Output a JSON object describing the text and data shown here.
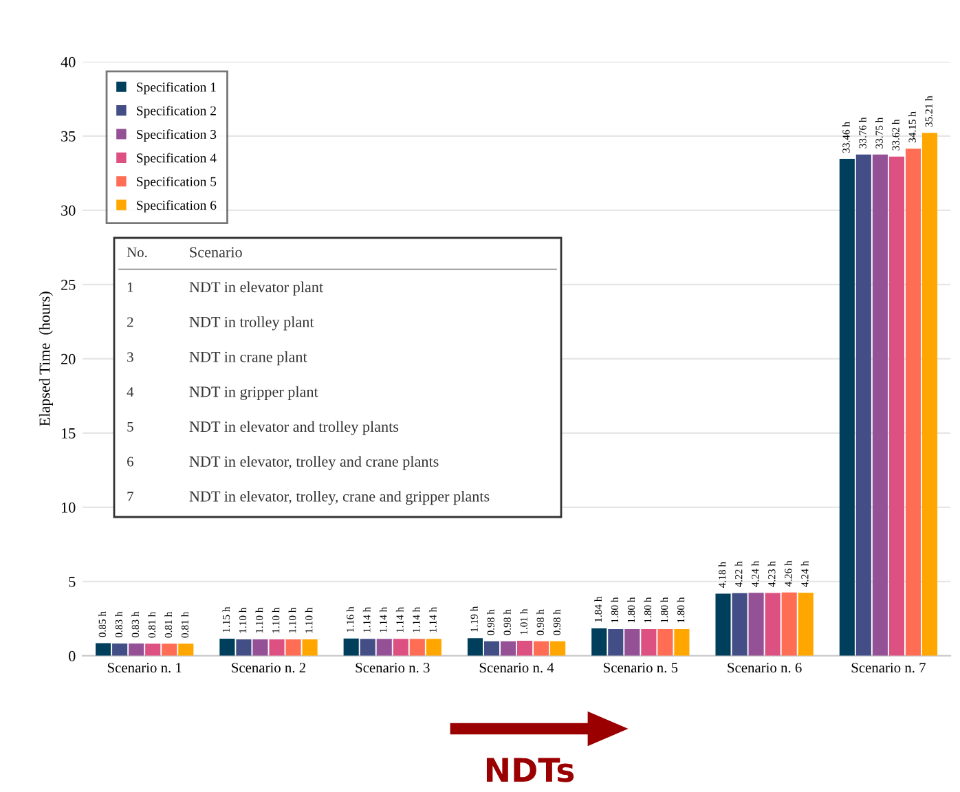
{
  "chart_data": {
    "type": "bar",
    "ylabel": "Elapsed Time  (hours)",
    "categories": [
      "Scenario n. 1",
      "Scenario n. 2",
      "Scenario n. 3",
      "Scenario n. 4",
      "Scenario n. 5",
      "Scenario n. 6",
      "Scenario n. 7"
    ],
    "series": [
      {
        "name": "Specification 1",
        "color": "#003f5c",
        "values": [
          0.85,
          1.15,
          1.16,
          1.19,
          1.84,
          4.18,
          33.46
        ],
        "value_labels": [
          "0.85 h",
          "1.15 h",
          "1.16 h",
          "1.19 h",
          "1.84 h",
          "4.18 h",
          "33.46 h"
        ]
      },
      {
        "name": "Specification 2",
        "color": "#444e86",
        "values": [
          0.83,
          1.1,
          1.14,
          0.98,
          1.8,
          4.22,
          33.76
        ],
        "value_labels": [
          "0.83 h",
          "1.10 h",
          "1.14 h",
          "0.98 h",
          "1.80 h",
          "4.22 h",
          "33.76 h"
        ]
      },
      {
        "name": "Specification 3",
        "color": "#955196",
        "values": [
          0.83,
          1.1,
          1.14,
          0.98,
          1.8,
          4.24,
          33.75
        ],
        "value_labels": [
          "0.83 h",
          "1.10 h",
          "1.14 h",
          "0.98 h",
          "1.80 h",
          "4.24 h",
          "33.75 h"
        ]
      },
      {
        "name": "Specification 4",
        "color": "#dd5182",
        "values": [
          0.81,
          1.1,
          1.14,
          1.01,
          1.8,
          4.23,
          33.62
        ],
        "value_labels": [
          "0.81 h",
          "1.10 h",
          "1.14 h",
          "1.01 h",
          "1.80 h",
          "4.23 h",
          "33.62 h"
        ]
      },
      {
        "name": "Specification 5",
        "color": "#ff6e54",
        "values": [
          0.81,
          1.1,
          1.14,
          0.98,
          1.8,
          4.26,
          34.15
        ],
        "value_labels": [
          "0.81 h",
          "1.10 h",
          "1.14 h",
          "0.98 h",
          "1.80 h",
          "4.26 h",
          "34.15 h"
        ]
      },
      {
        "name": "Specification 6",
        "color": "#ffa600",
        "values": [
          0.81,
          1.1,
          1.14,
          0.98,
          1.8,
          4.24,
          35.21
        ],
        "value_labels": [
          "0.81 h",
          "1.10 h",
          "1.14 h",
          "0.98 h",
          "1.80 h",
          "4.24 h",
          "35.21 h"
        ]
      }
    ],
    "ylim": [
      0,
      40
    ],
    "yticks": [
      0,
      5,
      10,
      15,
      20,
      25,
      30,
      35,
      40
    ],
    "grid": "y",
    "legend": "top left",
    "annotations": [
      "No.",
      "Scenario",
      "1",
      "NDT in elevator plant",
      "2",
      "NDT in trolley plant",
      "3",
      "NDT in crane plant",
      "4",
      "NDT in gripper plant",
      "5",
      "NDT in elevator and trolley plants",
      "6",
      "NDT in elevator, trolley and crane plants",
      "7",
      "NDT in elevator, trolley, crane and gripper plants",
      "NDTs"
    ]
  }
}
